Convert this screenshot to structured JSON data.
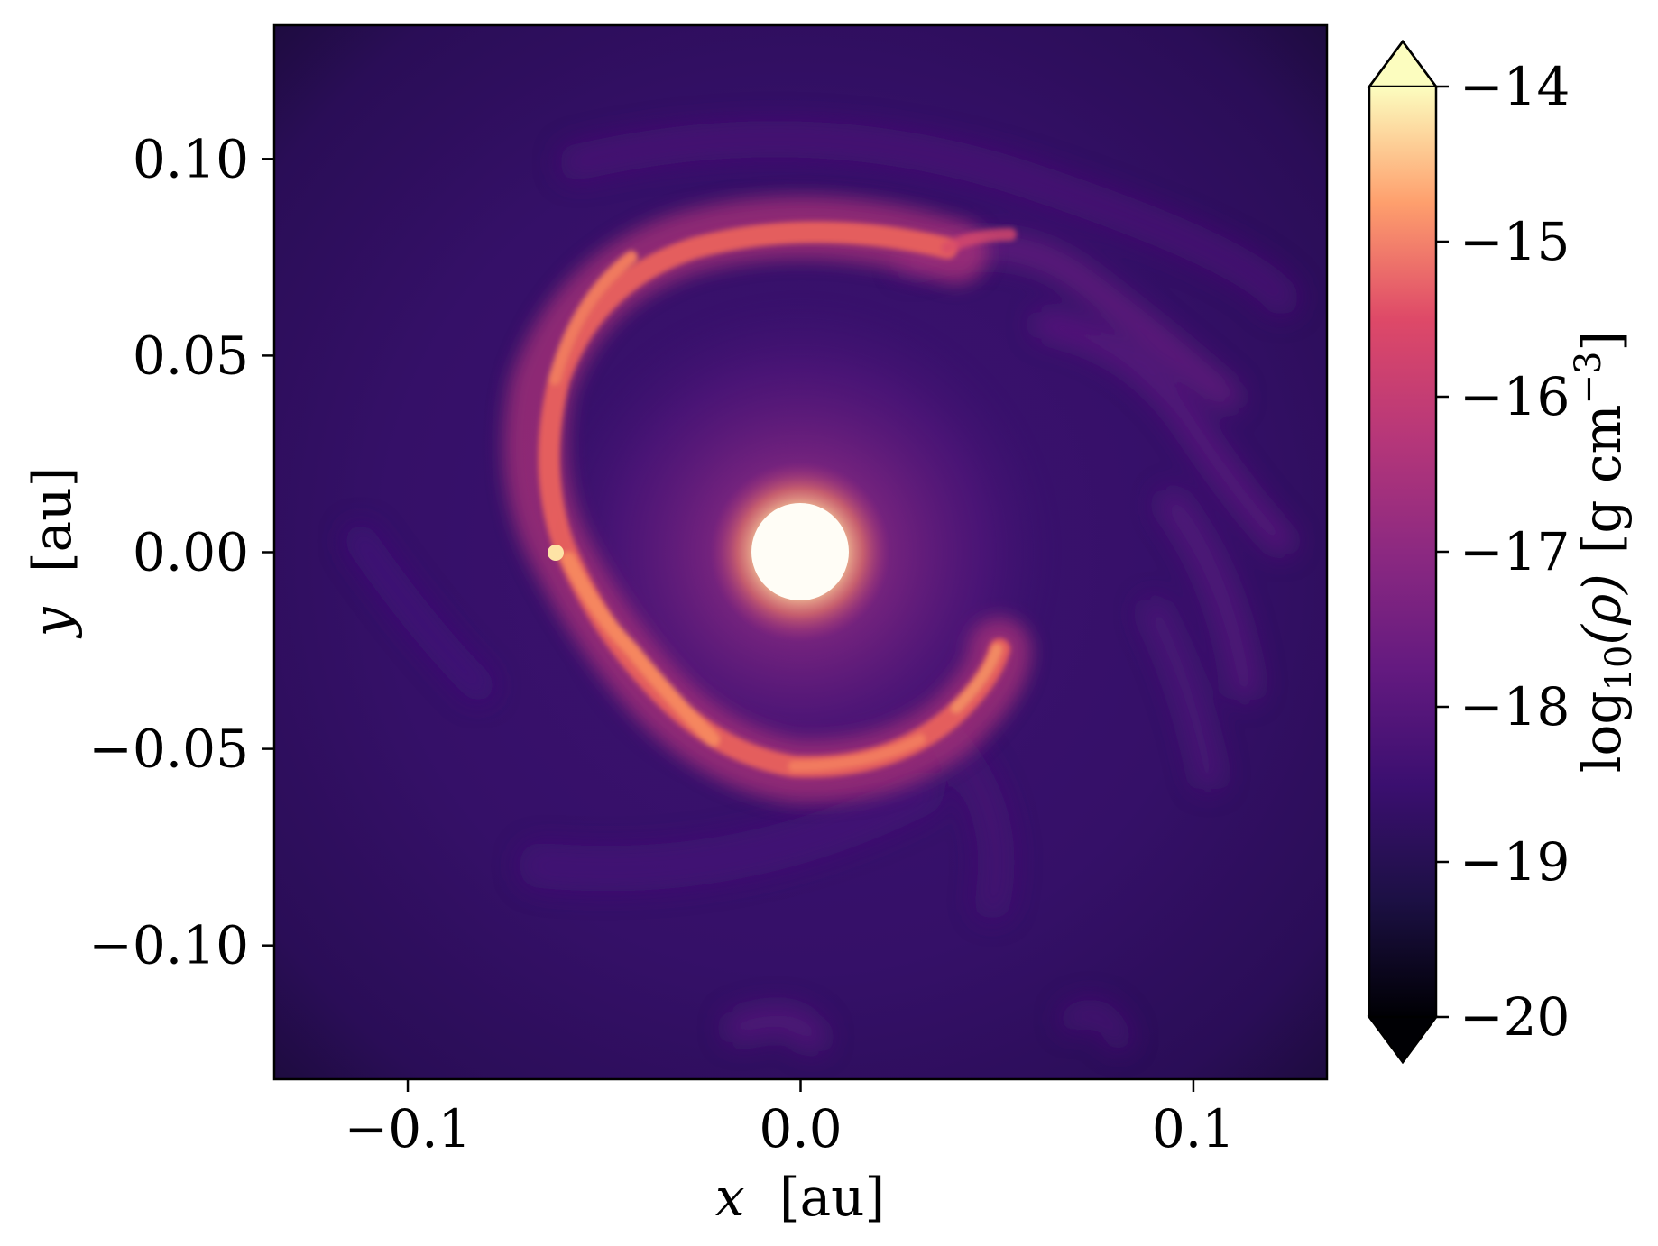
{
  "chart_data": {
    "type": "heatmap",
    "title": "",
    "xlabel": {
      "var": "x",
      "unit": "[au]"
    },
    "ylabel": {
      "var": "y",
      "unit": "[au]"
    },
    "xlim": [
      -0.134,
      0.134
    ],
    "ylim": [
      -0.134,
      0.134
    ],
    "x_ticks": [
      {
        "value": -0.1,
        "label": "−0.1"
      },
      {
        "value": 0.0,
        "label": "0.0"
      },
      {
        "value": 0.1,
        "label": "0.1"
      }
    ],
    "y_ticks": [
      {
        "value": 0.1,
        "label": "0.10"
      },
      {
        "value": 0.05,
        "label": "0.05"
      },
      {
        "value": 0.0,
        "label": "0.00"
      },
      {
        "value": -0.05,
        "label": "−0.05"
      },
      {
        "value": -0.1,
        "label": "−0.10"
      }
    ],
    "colorbar": {
      "colormap": "magma",
      "range": [
        -20,
        -14
      ],
      "extend": "both",
      "label": {
        "prefix": "log",
        "sub": "10",
        "var": "(ρ)",
        "unit": "[g cm",
        "exp": "−3",
        "close": "]"
      },
      "ticks": [
        {
          "value": -14,
          "label": "−14"
        },
        {
          "value": -15,
          "label": "−15"
        },
        {
          "value": -16,
          "label": "−16"
        },
        {
          "value": -17,
          "label": "−17"
        },
        {
          "value": -18,
          "label": "−18"
        },
        {
          "value": -19,
          "label": "−19"
        },
        {
          "value": -20,
          "label": "−20"
        }
      ]
    },
    "features": {
      "central_star": {
        "x": 0.0,
        "y": 0.0,
        "radius_au": 0.012,
        "log10_rho": -14
      },
      "background_log10_rho": -18.6,
      "spiral_arm_log10_rho": -15.6
    }
  }
}
